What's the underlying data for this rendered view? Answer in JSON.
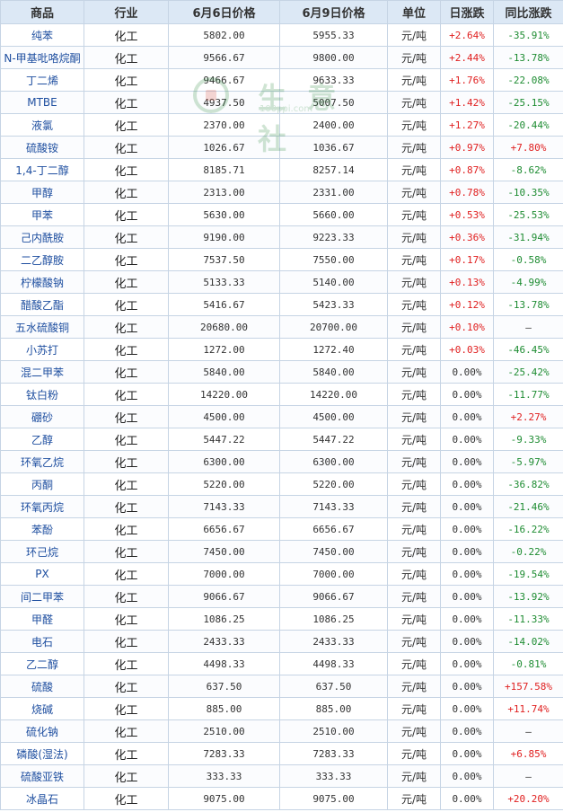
{
  "headers": [
    "商品",
    "行业",
    "6月6日价格",
    "6月9日价格",
    "单位",
    "日涨跌",
    "同比涨跌"
  ],
  "watermark": {
    "brand": "生 意 社",
    "site": "100ppi.com"
  },
  "rows": [
    {
      "name": "纯苯",
      "industry": "化工",
      "p1": "5802.00",
      "p2": "5955.33",
      "unit": "元/吨",
      "day": "+2.64%",
      "day_dir": "up",
      "yoy": "-35.91%",
      "yoy_dir": "down"
    },
    {
      "name": "N-甲基吡咯烷酮",
      "industry": "化工",
      "p1": "9566.67",
      "p2": "9800.00",
      "unit": "元/吨",
      "day": "+2.44%",
      "day_dir": "up",
      "yoy": "-13.78%",
      "yoy_dir": "down"
    },
    {
      "name": "丁二烯",
      "industry": "化工",
      "p1": "9466.67",
      "p2": "9633.33",
      "unit": "元/吨",
      "day": "+1.76%",
      "day_dir": "up",
      "yoy": "-22.08%",
      "yoy_dir": "down"
    },
    {
      "name": "MTBE",
      "industry": "化工",
      "p1": "4937.50",
      "p2": "5007.50",
      "unit": "元/吨",
      "day": "+1.42%",
      "day_dir": "up",
      "yoy": "-25.15%",
      "yoy_dir": "down"
    },
    {
      "name": "液氯",
      "industry": "化工",
      "p1": "2370.00",
      "p2": "2400.00",
      "unit": "元/吨",
      "day": "+1.27%",
      "day_dir": "up",
      "yoy": "-20.44%",
      "yoy_dir": "down"
    },
    {
      "name": "硫酸铵",
      "industry": "化工",
      "p1": "1026.67",
      "p2": "1036.67",
      "unit": "元/吨",
      "day": "+0.97%",
      "day_dir": "up",
      "yoy": "+7.80%",
      "yoy_dir": "up"
    },
    {
      "name": "1,4-丁二醇",
      "industry": "化工",
      "p1": "8185.71",
      "p2": "8257.14",
      "unit": "元/吨",
      "day": "+0.87%",
      "day_dir": "up",
      "yoy": "-8.62%",
      "yoy_dir": "down"
    },
    {
      "name": "甲醇",
      "industry": "化工",
      "p1": "2313.00",
      "p2": "2331.00",
      "unit": "元/吨",
      "day": "+0.78%",
      "day_dir": "up",
      "yoy": "-10.35%",
      "yoy_dir": "down"
    },
    {
      "name": "甲苯",
      "industry": "化工",
      "p1": "5630.00",
      "p2": "5660.00",
      "unit": "元/吨",
      "day": "+0.53%",
      "day_dir": "up",
      "yoy": "-25.53%",
      "yoy_dir": "down"
    },
    {
      "name": "己内酰胺",
      "industry": "化工",
      "p1": "9190.00",
      "p2": "9223.33",
      "unit": "元/吨",
      "day": "+0.36%",
      "day_dir": "up",
      "yoy": "-31.94%",
      "yoy_dir": "down"
    },
    {
      "name": "二乙醇胺",
      "industry": "化工",
      "p1": "7537.50",
      "p2": "7550.00",
      "unit": "元/吨",
      "day": "+0.17%",
      "day_dir": "up",
      "yoy": "-0.58%",
      "yoy_dir": "down"
    },
    {
      "name": "柠檬酸钠",
      "industry": "化工",
      "p1": "5133.33",
      "p2": "5140.00",
      "unit": "元/吨",
      "day": "+0.13%",
      "day_dir": "up",
      "yoy": "-4.99%",
      "yoy_dir": "down"
    },
    {
      "name": "醋酸乙酯",
      "industry": "化工",
      "p1": "5416.67",
      "p2": "5423.33",
      "unit": "元/吨",
      "day": "+0.12%",
      "day_dir": "up",
      "yoy": "-13.78%",
      "yoy_dir": "down"
    },
    {
      "name": "五水硫酸铜",
      "industry": "化工",
      "p1": "20680.00",
      "p2": "20700.00",
      "unit": "元/吨",
      "day": "+0.10%",
      "day_dir": "up",
      "yoy": "—",
      "yoy_dir": "none"
    },
    {
      "name": "小苏打",
      "industry": "化工",
      "p1": "1272.00",
      "p2": "1272.40",
      "unit": "元/吨",
      "day": "+0.03%",
      "day_dir": "up",
      "yoy": "-46.45%",
      "yoy_dir": "down"
    },
    {
      "name": "混二甲苯",
      "industry": "化工",
      "p1": "5840.00",
      "p2": "5840.00",
      "unit": "元/吨",
      "day": "0.00%",
      "day_dir": "flat",
      "yoy": "-25.42%",
      "yoy_dir": "down"
    },
    {
      "name": "钛白粉",
      "industry": "化工",
      "p1": "14220.00",
      "p2": "14220.00",
      "unit": "元/吨",
      "day": "0.00%",
      "day_dir": "flat",
      "yoy": "-11.77%",
      "yoy_dir": "down"
    },
    {
      "name": "硼砂",
      "industry": "化工",
      "p1": "4500.00",
      "p2": "4500.00",
      "unit": "元/吨",
      "day": "0.00%",
      "day_dir": "flat",
      "yoy": "+2.27%",
      "yoy_dir": "up"
    },
    {
      "name": "乙醇",
      "industry": "化工",
      "p1": "5447.22",
      "p2": "5447.22",
      "unit": "元/吨",
      "day": "0.00%",
      "day_dir": "flat",
      "yoy": "-9.33%",
      "yoy_dir": "down"
    },
    {
      "name": "环氧乙烷",
      "industry": "化工",
      "p1": "6300.00",
      "p2": "6300.00",
      "unit": "元/吨",
      "day": "0.00%",
      "day_dir": "flat",
      "yoy": "-5.97%",
      "yoy_dir": "down"
    },
    {
      "name": "丙酮",
      "industry": "化工",
      "p1": "5220.00",
      "p2": "5220.00",
      "unit": "元/吨",
      "day": "0.00%",
      "day_dir": "flat",
      "yoy": "-36.82%",
      "yoy_dir": "down"
    },
    {
      "name": "环氧丙烷",
      "industry": "化工",
      "p1": "7143.33",
      "p2": "7143.33",
      "unit": "元/吨",
      "day": "0.00%",
      "day_dir": "flat",
      "yoy": "-21.46%",
      "yoy_dir": "down"
    },
    {
      "name": "苯酚",
      "industry": "化工",
      "p1": "6656.67",
      "p2": "6656.67",
      "unit": "元/吨",
      "day": "0.00%",
      "day_dir": "flat",
      "yoy": "-16.22%",
      "yoy_dir": "down"
    },
    {
      "name": "环己烷",
      "industry": "化工",
      "p1": "7450.00",
      "p2": "7450.00",
      "unit": "元/吨",
      "day": "0.00%",
      "day_dir": "flat",
      "yoy": "-0.22%",
      "yoy_dir": "down"
    },
    {
      "name": "PX",
      "industry": "化工",
      "p1": "7000.00",
      "p2": "7000.00",
      "unit": "元/吨",
      "day": "0.00%",
      "day_dir": "flat",
      "yoy": "-19.54%",
      "yoy_dir": "down"
    },
    {
      "name": "间二甲苯",
      "industry": "化工",
      "p1": "9066.67",
      "p2": "9066.67",
      "unit": "元/吨",
      "day": "0.00%",
      "day_dir": "flat",
      "yoy": "-13.92%",
      "yoy_dir": "down"
    },
    {
      "name": "甲醛",
      "industry": "化工",
      "p1": "1086.25",
      "p2": "1086.25",
      "unit": "元/吨",
      "day": "0.00%",
      "day_dir": "flat",
      "yoy": "-11.33%",
      "yoy_dir": "down"
    },
    {
      "name": "电石",
      "industry": "化工",
      "p1": "2433.33",
      "p2": "2433.33",
      "unit": "元/吨",
      "day": "0.00%",
      "day_dir": "flat",
      "yoy": "-14.02%",
      "yoy_dir": "down"
    },
    {
      "name": "乙二醇",
      "industry": "化工",
      "p1": "4498.33",
      "p2": "4498.33",
      "unit": "元/吨",
      "day": "0.00%",
      "day_dir": "flat",
      "yoy": "-0.81%",
      "yoy_dir": "down"
    },
    {
      "name": "硫酸",
      "industry": "化工",
      "p1": "637.50",
      "p2": "637.50",
      "unit": "元/吨",
      "day": "0.00%",
      "day_dir": "flat",
      "yoy": "+157.58%",
      "yoy_dir": "up"
    },
    {
      "name": "烧碱",
      "industry": "化工",
      "p1": "885.00",
      "p2": "885.00",
      "unit": "元/吨",
      "day": "0.00%",
      "day_dir": "flat",
      "yoy": "+11.74%",
      "yoy_dir": "up"
    },
    {
      "name": "硫化钠",
      "industry": "化工",
      "p1": "2510.00",
      "p2": "2510.00",
      "unit": "元/吨",
      "day": "0.00%",
      "day_dir": "flat",
      "yoy": "—",
      "yoy_dir": "none"
    },
    {
      "name": "磷酸(湿法)",
      "industry": "化工",
      "p1": "7283.33",
      "p2": "7283.33",
      "unit": "元/吨",
      "day": "0.00%",
      "day_dir": "flat",
      "yoy": "+6.85%",
      "yoy_dir": "up"
    },
    {
      "name": "硫酸亚铁",
      "industry": "化工",
      "p1": "333.33",
      "p2": "333.33",
      "unit": "元/吨",
      "day": "0.00%",
      "day_dir": "flat",
      "yoy": "—",
      "yoy_dir": "none"
    },
    {
      "name": "冰晶石",
      "industry": "化工",
      "p1": "9075.00",
      "p2": "9075.00",
      "unit": "元/吨",
      "day": "0.00%",
      "day_dir": "flat",
      "yoy": "+20.20%",
      "yoy_dir": "up"
    }
  ]
}
